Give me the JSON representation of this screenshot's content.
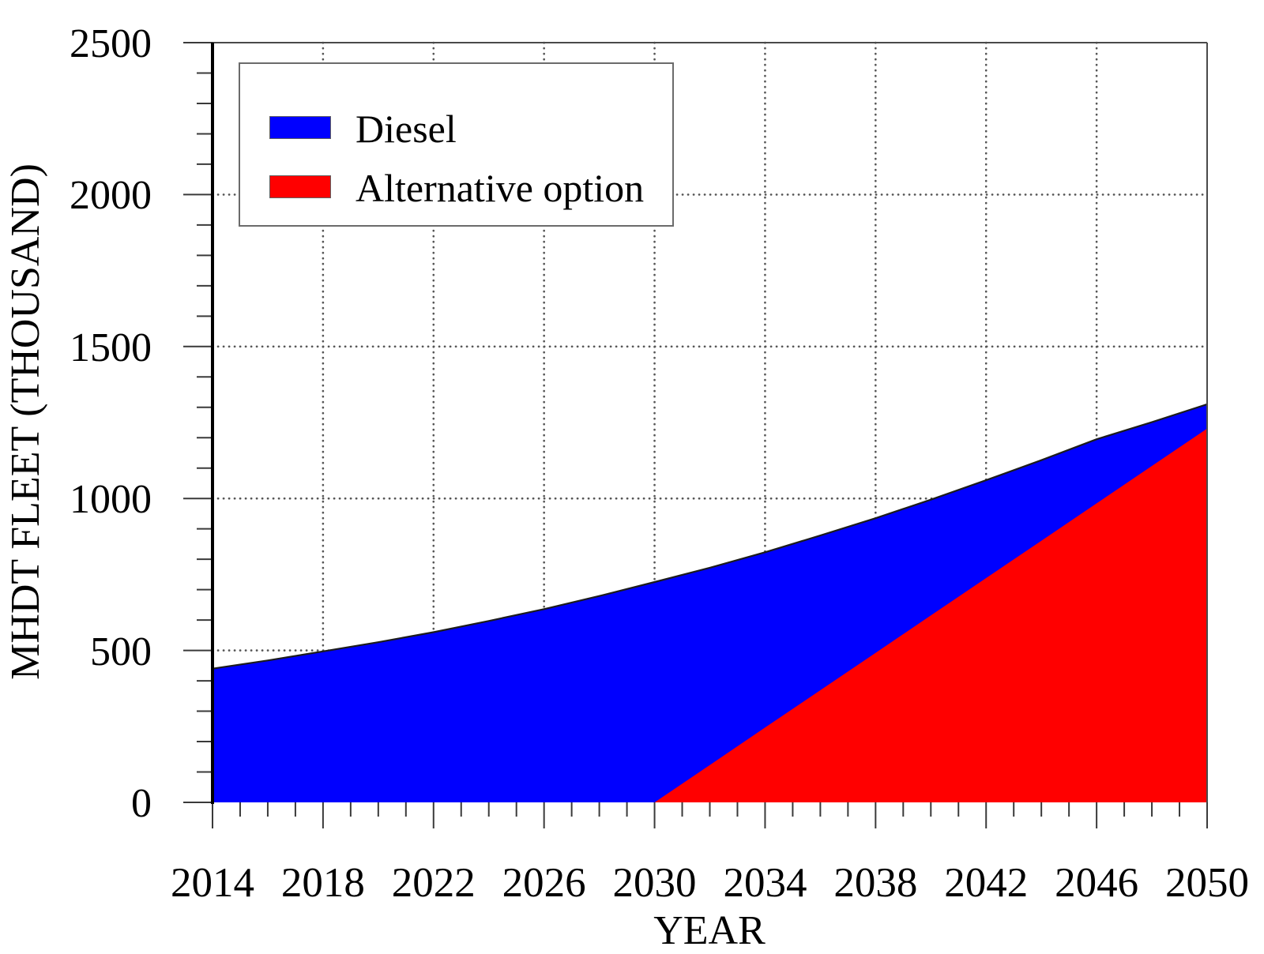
{
  "figure": {
    "background_color": "#ffffff",
    "x_axis_title": "YEAR",
    "y_axis_title": "MHDT FLEET (THOUSAND)",
    "legend": {
      "position": "upper-left",
      "items": [
        {
          "label": "Diesel",
          "color": "#0000ff"
        },
        {
          "label": "Alternative option",
          "color": "#ff0000"
        }
      ]
    }
  },
  "chart_data": {
    "type": "area",
    "stacked": true,
    "title": "",
    "xlabel": "YEAR",
    "ylabel": "MHDT FLEET (THOUSAND)",
    "xlim": [
      2014,
      2050
    ],
    "ylim": [
      0,
      2500
    ],
    "grid": "dotted gray lines at major ticks",
    "legend_position": "upper left inside plot",
    "x_major_ticks": [
      2014,
      2018,
      2022,
      2026,
      2030,
      2034,
      2038,
      2042,
      2046,
      2050
    ],
    "y_major_ticks": [
      0,
      500,
      1000,
      1500,
      2000,
      2500
    ],
    "x_minor_interval": 1,
    "y_minor_interval": 100,
    "x": [
      2014,
      2016,
      2018,
      2020,
      2022,
      2024,
      2026,
      2028,
      2030,
      2032,
      2034,
      2036,
      2038,
      2040,
      2042,
      2044,
      2046,
      2048,
      2050
    ],
    "series": [
      {
        "name": "Alternative option",
        "color": "#ff0000",
        "stack_order": "bottom",
        "values": [
          0,
          0,
          0,
          0,
          0,
          0,
          0,
          0,
          0,
          123,
          246,
          369,
          492,
          615,
          738,
          861,
          984,
          1107,
          1230
        ]
      },
      {
        "name": "Diesel",
        "color": "#0000ff",
        "stack_order": "top",
        "values": [
          440,
          467,
          497,
          527,
          560,
          597,
          636,
          679,
          725,
          649,
          577,
          509,
          443,
          381,
          322,
          265,
          211,
          144,
          80
        ]
      }
    ],
    "total_fleet": [
      440,
      467,
      497,
      527,
      560,
      597,
      636,
      679,
      725,
      772,
      823,
      878,
      935,
      996,
      1060,
      1126,
      1195,
      1251,
      1310
    ]
  }
}
